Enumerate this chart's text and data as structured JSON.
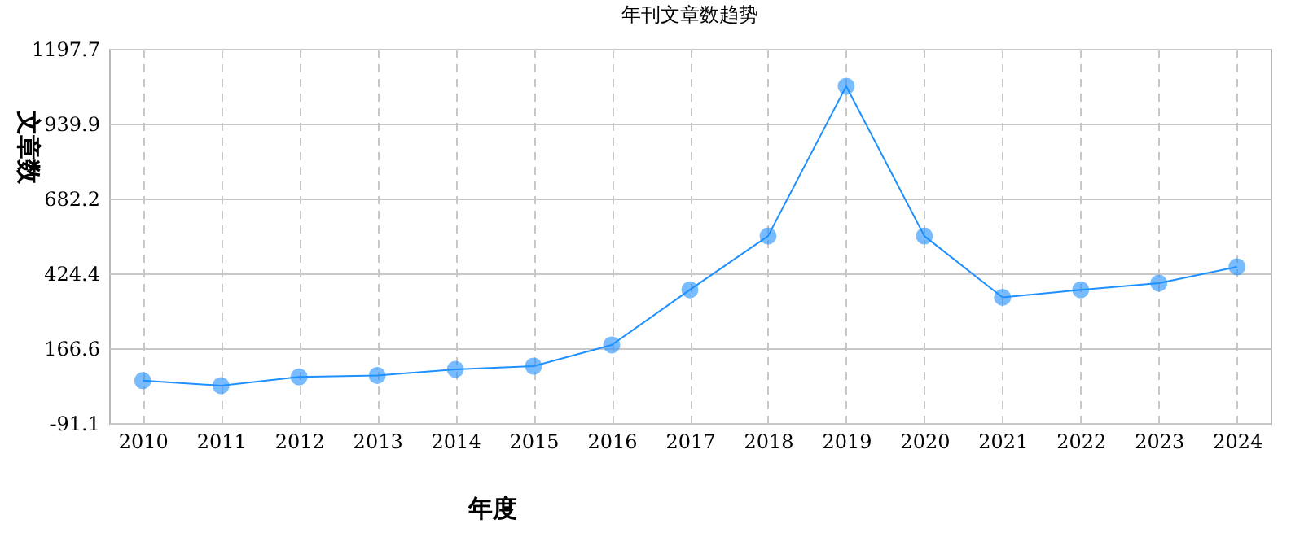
{
  "chart_data": {
    "type": "line",
    "title": "年刊文章数趋势",
    "xlabel": "年度",
    "ylabel": "文章数",
    "categories": [
      "2010",
      "2011",
      "2012",
      "2013",
      "2014",
      "2015",
      "2016",
      "2017",
      "2018",
      "2019",
      "2020",
      "2021",
      "2022",
      "2023",
      "2024"
    ],
    "series": [
      {
        "color": "#1e90ff",
        "values": [
          55,
          38,
          68,
          73,
          94,
          105,
          178,
          368,
          553,
          1069,
          553,
          342,
          368,
          391,
          447
        ]
      }
    ],
    "ylim": [
      -91.1,
      1197.7
    ],
    "yticks": [
      -91.1,
      166.6,
      424.4,
      682.2,
      939.9,
      1197.7
    ],
    "grid": true,
    "marker": "circle",
    "line_style": "solid"
  }
}
